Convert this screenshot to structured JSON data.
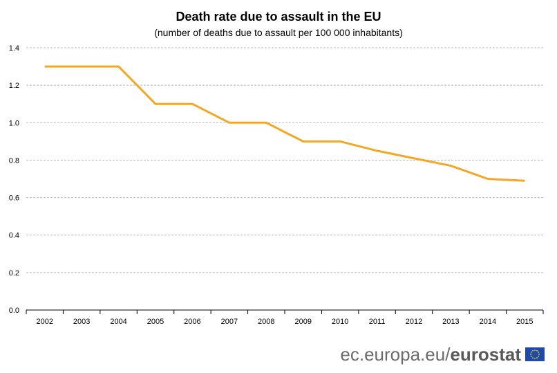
{
  "chart_data": {
    "type": "line",
    "title": "Death rate due to assault in the EU",
    "subtitle": "(number  of deaths due to assault per 100 000 inhabitants)",
    "xlabel": "",
    "ylabel": "",
    "categories": [
      "2002",
      "2003",
      "2004",
      "2005",
      "2006",
      "2007",
      "2008",
      "2009",
      "2010",
      "2011",
      "2012",
      "2013",
      "2014",
      "2015"
    ],
    "series": [
      {
        "values": [
          1.3,
          1.3,
          1.3,
          1.1,
          1.1,
          1.0,
          1.0,
          0.9,
          0.9,
          0.85,
          0.81,
          0.77,
          0.7,
          0.69
        ]
      }
    ],
    "ylim": [
      0,
      1.4
    ],
    "yticks": [
      "0.0",
      "0.2",
      "0.4",
      "0.6",
      "0.8",
      "1.0",
      "1.2",
      "1.4"
    ],
    "grid": true,
    "colors": {
      "line": "#F5A623",
      "grid": "#b8b8b8"
    }
  },
  "footer": {
    "url": "ec.europa.eu/",
    "brand": "eurostat",
    "logo_icon": "eu-flag-icon"
  }
}
